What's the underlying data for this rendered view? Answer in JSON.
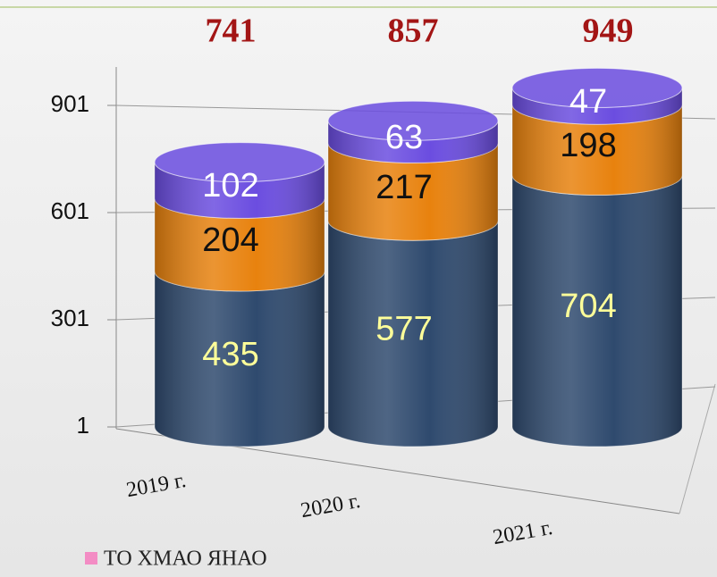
{
  "chart_data": {
    "type": "stacked_cylinder",
    "categories": [
      "2019 г.",
      "2020 г.",
      "2021 г."
    ],
    "series": [
      {
        "color": "#2f4a6e",
        "label_color": "#ffff99",
        "values": [
          435,
          577,
          704
        ]
      },
      {
        "color": "#e8820e",
        "label_color": "#111111",
        "values": [
          204,
          217,
          198
        ]
      },
      {
        "color": "#6b4de0",
        "label_color": "#ffffff",
        "values": [
          102,
          63,
          47
        ]
      }
    ],
    "totals": [
      741,
      857,
      949
    ],
    "totals_color": "#a31515",
    "ylim": [
      1,
      1001
    ],
    "yticks": [
      1,
      301,
      601,
      901
    ],
    "grid": true,
    "legend": {
      "label": "ТО ХМАО ЯНАО",
      "color": "#f38cc4"
    }
  }
}
